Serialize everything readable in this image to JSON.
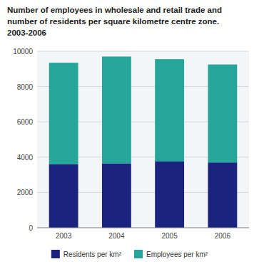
{
  "chart_data": {
    "type": "bar",
    "stacked": true,
    "title": "Number of employees in wholesale and retail trade and\nnumber of residents per square kilometre centre zone.\n2003-2006",
    "categories": [
      "2003",
      "2004",
      "2005",
      "2006"
    ],
    "series": [
      {
        "name": "Residents per km²",
        "color": "#1a237e",
        "values": [
          3600,
          3650,
          3750,
          3700
        ]
      },
      {
        "name": "Employees per km²",
        "color": "#26a69a",
        "values": [
          5750,
          6050,
          5800,
          5550
        ]
      }
    ],
    "ylim": [
      0,
      10000
    ],
    "yticks": [
      0,
      2000,
      4000,
      6000,
      8000,
      10000
    ],
    "grid": true,
    "legend": "bottom"
  }
}
